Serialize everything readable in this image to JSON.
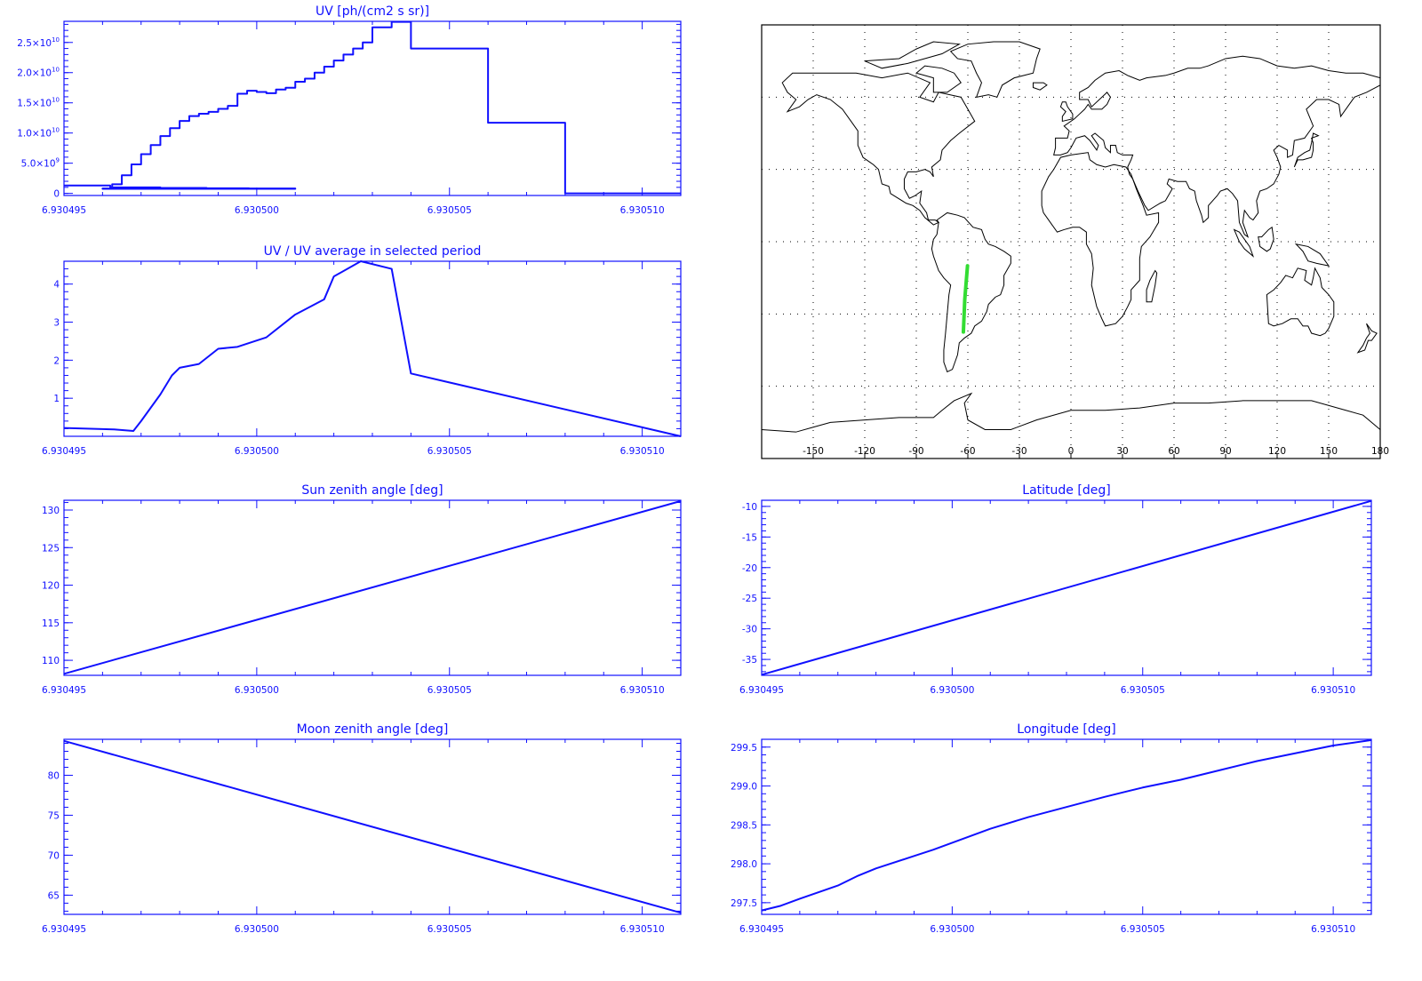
{
  "colors": {
    "axis": "#1010ff",
    "line": "#1010ff",
    "coast": "#000000",
    "track": "#33dd33",
    "grid": "#000000"
  },
  "x_tick_labels": [
    "6.930495",
    "6.930500",
    "6.930505",
    "6.930510"
  ],
  "chart_data": [
    {
      "id": "uv",
      "type": "line",
      "drawstyle": "steps",
      "title": "UV [ph/(cm2 s sr)]",
      "xlim": [
        6.930495,
        6.930511
      ],
      "ylim": [
        -350000000,
        28500000000
      ],
      "xticks": [
        6.930495,
        6.9305,
        6.930505,
        6.93051
      ],
      "yticks": [
        0,
        5000000000,
        10000000000,
        15000000000,
        20000000000,
        25000000000
      ],
      "ytick_labels": [
        {
          "base": "0",
          "exp": ""
        },
        {
          "base": "5.0×10",
          "exp": "9"
        },
        {
          "base": "1.0×10",
          "exp": "10"
        },
        {
          "base": "1.5×10",
          "exp": "10"
        },
        {
          "base": "2.0×10",
          "exp": "10"
        },
        {
          "base": "2.5×10",
          "exp": "10"
        }
      ],
      "x": [
        6.930495,
        6.9304962,
        6.9304975,
        6.9304987,
        6.9304998,
        6.930501,
        6.9304962,
        6.930496,
        6.93049625,
        6.9304965,
        6.93049675,
        6.930497,
        6.93049725,
        6.9304975,
        6.93049775,
        6.930498,
        6.93049825,
        6.9304985,
        6.93049875,
        6.930499,
        6.93049925,
        6.9304995,
        6.93049975,
        6.9305,
        6.93050025,
        6.9305005,
        6.93050075,
        6.930501,
        6.93050125,
        6.9305015,
        6.93050175,
        6.930502,
        6.93050225,
        6.9305025,
        6.93050275,
        6.930503,
        6.9305035,
        6.930504,
        6.930506,
        6.930508,
        6.93051,
        6.930511
      ],
      "y": [
        1300000000,
        1000000000,
        900000000,
        850000000,
        800000000,
        750000000,
        750000000,
        800000000,
        1500000000,
        3000000000,
        4800000000,
        6500000000,
        8000000000,
        9500000000,
        10800000000,
        12000000000,
        12800000000,
        13200000000,
        13500000000,
        14000000000,
        14500000000,
        16500000000,
        17000000000,
        16800000000,
        16600000000,
        17200000000,
        17500000000,
        18500000000,
        19000000000,
        20000000000,
        21000000000,
        22000000000,
        23000000000,
        24000000000,
        25000000000,
        27500000000,
        28400000000,
        24000000000,
        11700000000,
        0,
        0,
        0
      ]
    },
    {
      "id": "ratio",
      "type": "line",
      "title": "UV / UV average in selected period",
      "xlim": [
        6.930495,
        6.930511
      ],
      "ylim": [
        0,
        4.6
      ],
      "xticks": [
        6.930495,
        6.9305,
        6.930505,
        6.93051
      ],
      "yticks": [
        1,
        2,
        3,
        4
      ],
      "ytick_labels": [
        "1",
        "2",
        "3",
        "4"
      ],
      "x": [
        6.930495,
        6.9304963,
        6.9304968,
        6.930497,
        6.9304975,
        6.9304978,
        6.930498,
        6.9304985,
        6.930499,
        6.9304995,
        6.93050025,
        6.930501,
        6.93050175,
        6.930502,
        6.9305027,
        6.9305035,
        6.930504,
        6.930511
      ],
      "y": [
        0.22,
        0.18,
        0.14,
        0.4,
        1.1,
        1.6,
        1.8,
        1.9,
        2.3,
        2.35,
        2.6,
        3.2,
        3.6,
        4.2,
        4.6,
        4.4,
        1.65,
        0
      ]
    },
    {
      "id": "sza",
      "type": "line",
      "title": "Sun zenith angle [deg]",
      "xlim": [
        6.930495,
        6.930511
      ],
      "ylim": [
        108,
        131.3
      ],
      "xticks": [
        6.930495,
        6.9305,
        6.930505,
        6.93051
      ],
      "yticks": [
        110,
        115,
        120,
        125,
        130
      ],
      "ytick_labels": [
        "110",
        "115",
        "120",
        "125",
        "130"
      ],
      "x": [
        6.930495,
        6.930511
      ],
      "y": [
        108.2,
        131.2
      ]
    },
    {
      "id": "lat",
      "type": "line",
      "title": "Latitude [deg]",
      "xlim": [
        6.930495,
        6.930511
      ],
      "ylim": [
        -37.6,
        -9
      ],
      "xticks": [
        6.930495,
        6.9305,
        6.930505,
        6.93051
      ],
      "yticks": [
        -35,
        -30,
        -25,
        -20,
        -15,
        -10
      ],
      "ytick_labels": [
        "-35",
        "-30",
        "-25",
        "-20",
        "-15",
        "-10"
      ],
      "x": [
        6.930495,
        6.930511
      ],
      "y": [
        -37.5,
        -9.1
      ]
    },
    {
      "id": "mza",
      "type": "line",
      "title": "Moon zenith angle [deg]",
      "xlim": [
        6.930495,
        6.930511
      ],
      "ylim": [
        62.6,
        84.5
      ],
      "xticks": [
        6.930495,
        6.9305,
        6.930505,
        6.93051
      ],
      "yticks": [
        65,
        70,
        75,
        80
      ],
      "ytick_labels": [
        "65",
        "70",
        "75",
        "80"
      ],
      "x": [
        6.930495,
        6.930511
      ],
      "y": [
        84.3,
        62.8
      ]
    },
    {
      "id": "lon",
      "type": "line",
      "title": "Longitude [deg]",
      "xlim": [
        6.930495,
        6.930511
      ],
      "ylim": [
        297.35,
        299.6
      ],
      "xticks": [
        6.930495,
        6.9305,
        6.930505,
        6.93051
      ],
      "yticks": [
        297.5,
        298.0,
        298.5,
        299.0,
        299.5
      ],
      "ytick_labels": [
        "297.5",
        "298.0",
        "298.5",
        "299.0",
        "299.5"
      ],
      "x": [
        6.930495,
        6.9304955,
        6.930496,
        6.930497,
        6.9304975,
        6.930498,
        6.930499,
        6.9304995,
        6.9305,
        6.930501,
        6.930502,
        6.930503,
        6.930504,
        6.930505,
        6.930506,
        6.930507,
        6.930508,
        6.930509,
        6.93051,
        6.930511
      ],
      "y": [
        297.4,
        297.46,
        297.55,
        297.72,
        297.84,
        297.94,
        298.1,
        298.18,
        298.27,
        298.45,
        298.6,
        298.73,
        298.86,
        298.98,
        299.08,
        299.2,
        299.32,
        299.42,
        299.52,
        299.59
      ]
    },
    {
      "id": "map",
      "type": "scatter",
      "title": "",
      "xlim": [
        -180,
        180
      ],
      "ylim": [
        -90,
        90
      ],
      "xticks": [
        -150,
        -120,
        -90,
        -60,
        -30,
        0,
        30,
        60,
        90,
        120,
        150,
        180
      ],
      "xtick_labels": [
        "-150",
        "-120",
        "-90",
        "-60",
        "-30",
        "0",
        "30",
        "60",
        "90",
        "120",
        "150",
        "180"
      ],
      "grid_lon": [
        -150,
        -120,
        -90,
        -60,
        -30,
        0,
        30,
        60,
        90,
        120,
        150
      ],
      "grid_lat": [
        -60,
        -30,
        0,
        30,
        60
      ],
      "track": {
        "lon": [
          -60.2,
          -61.8,
          -62.6
        ],
        "lat": [
          -10,
          -24,
          -37.5
        ]
      }
    }
  ]
}
